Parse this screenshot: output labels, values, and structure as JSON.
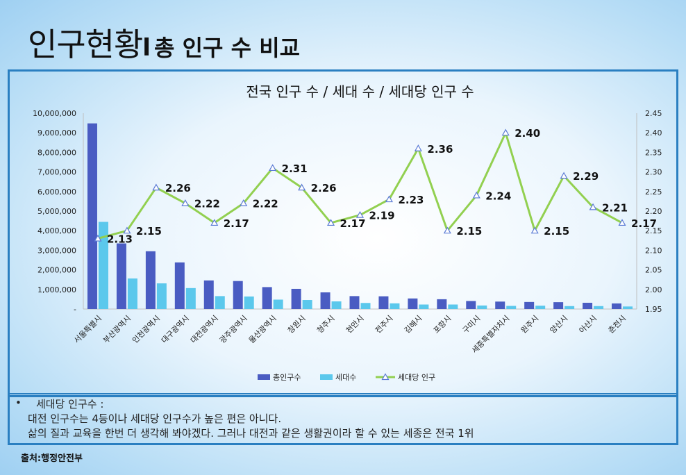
{
  "page": {
    "title": "인구현황",
    "separator": "l",
    "subtitle": "총 인구 수 비교"
  },
  "note": {
    "bullet": "•",
    "heading": "세대당 인구수 :",
    "line1": "대전 인구수는 4등이나 세대당 인구수가 높은 편은 아니다.",
    "line2": "삶의 질과 교육을 한번 더 생각해 봐야겠다.    그러나 대전과 같은 생활권이라 할 수 있는 세종은 전국 1위"
  },
  "source": "출처:행정안전부",
  "colors": {
    "total": "#4a5cc2",
    "households": "#5bc8ec",
    "per_household": "#92d050",
    "frame": "#2a7fc1"
  },
  "chart_data": {
    "type": "bar",
    "title": "전국 인구 수 / 세대 수 / 세대당 인구 수",
    "categories": [
      "서울특별시",
      "부산광역시",
      "인천광역시",
      "대구광역시",
      "대전광역시",
      "광주광역시",
      "울산광역시",
      "창원시",
      "청주시",
      "천안시",
      "전주시",
      "김해시",
      "포항시",
      "구미시",
      "세종특별자치시",
      "원주시",
      "양산시",
      "아산시",
      "춘천시"
    ],
    "series": [
      {
        "name": "총인구수",
        "type": "bar",
        "axis": "left",
        "values": [
          9480000,
          3350000,
          2950000,
          2380000,
          1460000,
          1430000,
          1120000,
          1030000,
          850000,
          660000,
          650000,
          540000,
          500000,
          410000,
          380000,
          360000,
          350000,
          320000,
          285000
        ]
      },
      {
        "name": "세대수",
        "type": "bar",
        "axis": "left",
        "values": [
          4450000,
          1560000,
          1310000,
          1070000,
          660000,
          640000,
          480000,
          460000,
          390000,
          310000,
          290000,
          230000,
          230000,
          180000,
          160000,
          170000,
          150000,
          150000,
          130000
        ]
      },
      {
        "name": "세대당 인구",
        "type": "line",
        "axis": "right",
        "values": [
          2.13,
          2.15,
          2.26,
          2.22,
          2.17,
          2.22,
          2.31,
          2.26,
          2.17,
          2.19,
          2.23,
          2.36,
          2.15,
          2.24,
          2.4,
          2.15,
          2.29,
          2.21,
          2.17
        ],
        "labels": [
          "2.13",
          "2.15",
          "2.26",
          "2.22",
          "2.17",
          "2.22",
          "2.31",
          "2.26",
          "2.17",
          "2.19",
          "2.23",
          "2.36",
          "2.15",
          "2.24",
          "2.40",
          "2.15",
          "2.29",
          "2.21",
          "2.17"
        ]
      }
    ],
    "y_left": {
      "min": 0,
      "max": 10000000,
      "ticks": [
        "-",
        "1,000,000",
        "2,000,000",
        "3,000,000",
        "4,000,000",
        "5,000,000",
        "6,000,000",
        "7,000,000",
        "8,000,000",
        "9,000,000",
        "10,000,000"
      ]
    },
    "y_right": {
      "min": 1.95,
      "max": 2.45,
      "ticks": [
        "1.95",
        "2.00",
        "2.05",
        "2.10",
        "2.15",
        "2.20",
        "2.25",
        "2.30",
        "2.35",
        "2.40",
        "2.45"
      ]
    },
    "legend_position": "bottom",
    "grid": false
  }
}
